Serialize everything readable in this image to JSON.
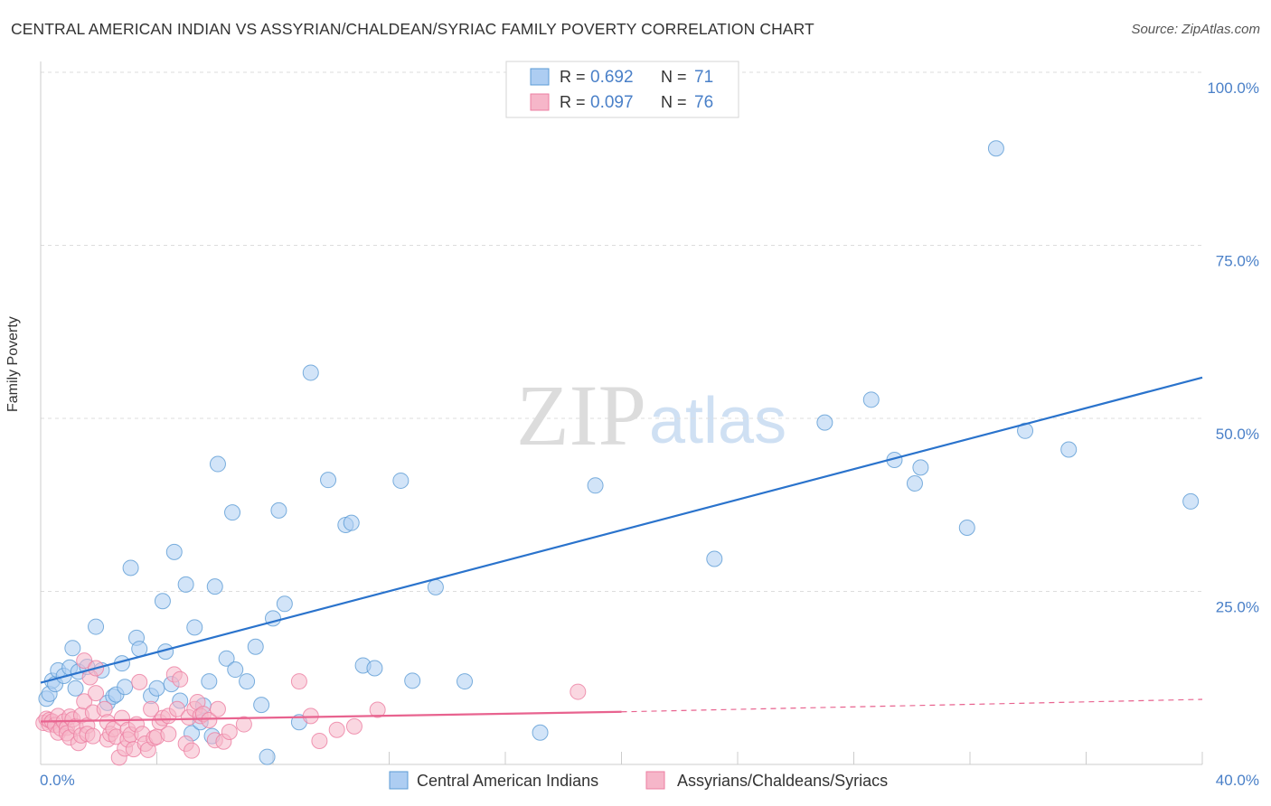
{
  "title": "CENTRAL AMERICAN INDIAN VS ASSYRIAN/CHALDEAN/SYRIAC FAMILY POVERTY CORRELATION CHART",
  "source": "Source: ZipAtlas.com",
  "watermark": {
    "zip": "ZIP",
    "atlas": "atlas"
  },
  "colors": {
    "blue": "#5b9bd5",
    "blue_fill": "#adcdf2",
    "blue_line": "#2a73cc",
    "pink": "#ec7ea1",
    "pink_fill": "#f6b6c9",
    "pink_line": "#e8638f",
    "tick_blue": "#4a80c8"
  },
  "chart_data": {
    "type": "scatter",
    "xlabel": "",
    "ylabel": "Family Poverty",
    "xlim": [
      0,
      40
    ],
    "ylim": [
      0,
      100
    ],
    "x_tick_labels": [
      {
        "value": 0,
        "label": "0.0%"
      },
      {
        "value": 40,
        "label": "40.0%"
      }
    ],
    "y_tick_labels": [
      {
        "value": 25,
        "label": "25.0%"
      },
      {
        "value": 50,
        "label": "50.0%"
      },
      {
        "value": 75,
        "label": "75.0%"
      },
      {
        "value": 100,
        "label": "100.0%"
      }
    ],
    "legend_stats": [
      {
        "r_label": "R =",
        "r": "0.692",
        "n_label": "N =",
        "n": "71"
      },
      {
        "r_label": "R =",
        "r": "0.097",
        "n_label": "N =",
        "n": "76"
      }
    ],
    "series": [
      {
        "name": "Central American Indians",
        "trend": {
          "x0": 0,
          "y0": 11.8,
          "x1": 40,
          "y1": 55.9
        },
        "points": [
          [
            0.2,
            9.5
          ],
          [
            0.3,
            10.2
          ],
          [
            0.4,
            12.1
          ],
          [
            0.5,
            11.6
          ],
          [
            0.6,
            13.6
          ],
          [
            0.8,
            12.8
          ],
          [
            1.0,
            14.0
          ],
          [
            1.1,
            16.8
          ],
          [
            1.2,
            11.0
          ],
          [
            1.3,
            13.4
          ],
          [
            1.6,
            14.1
          ],
          [
            1.9,
            19.9
          ],
          [
            2.1,
            13.6
          ],
          [
            2.3,
            8.9
          ],
          [
            2.5,
            9.8
          ],
          [
            2.6,
            10.1
          ],
          [
            2.8,
            14.6
          ],
          [
            2.9,
            11.2
          ],
          [
            3.1,
            28.4
          ],
          [
            3.3,
            18.3
          ],
          [
            3.4,
            16.7
          ],
          [
            3.8,
            9.9
          ],
          [
            4.0,
            11.0
          ],
          [
            4.2,
            23.6
          ],
          [
            4.3,
            16.3
          ],
          [
            4.5,
            11.6
          ],
          [
            4.6,
            30.7
          ],
          [
            4.8,
            9.2
          ],
          [
            5.0,
            26.0
          ],
          [
            5.2,
            4.5
          ],
          [
            5.3,
            19.8
          ],
          [
            5.5,
            6.1
          ],
          [
            5.6,
            8.5
          ],
          [
            5.8,
            12.0
          ],
          [
            5.9,
            4.1
          ],
          [
            6.0,
            25.7
          ],
          [
            6.1,
            43.4
          ],
          [
            6.4,
            15.3
          ],
          [
            6.6,
            36.4
          ],
          [
            6.7,
            13.7
          ],
          [
            7.1,
            12.0
          ],
          [
            7.4,
            17.0
          ],
          [
            7.6,
            8.6
          ],
          [
            7.8,
            1.1
          ],
          [
            8.0,
            21.1
          ],
          [
            8.2,
            36.7
          ],
          [
            8.4,
            23.2
          ],
          [
            8.9,
            6.1
          ],
          [
            9.3,
            56.6
          ],
          [
            9.9,
            41.1
          ],
          [
            10.5,
            34.6
          ],
          [
            10.7,
            34.9
          ],
          [
            11.1,
            14.3
          ],
          [
            11.5,
            13.9
          ],
          [
            12.4,
            41.0
          ],
          [
            12.8,
            12.1
          ],
          [
            13.6,
            25.6
          ],
          [
            14.6,
            12.0
          ],
          [
            17.2,
            4.6
          ],
          [
            19.1,
            40.3
          ],
          [
            23.2,
            29.7
          ],
          [
            27.0,
            49.4
          ],
          [
            28.6,
            52.7
          ],
          [
            29.4,
            44.0
          ],
          [
            30.1,
            40.6
          ],
          [
            30.3,
            42.9
          ],
          [
            31.9,
            34.2
          ],
          [
            32.9,
            89.0
          ],
          [
            33.9,
            48.2
          ],
          [
            35.4,
            45.5
          ],
          [
            39.6,
            38.0
          ]
        ]
      },
      {
        "name": "Assyrians/Chaldeans/Syriacs",
        "trend": {
          "x0": 0,
          "y0": 6.2,
          "x1": 20,
          "y1": 7.6,
          "dash_to_x": 40,
          "dash_to_y": 9.4
        },
        "points": [
          [
            0.1,
            6.0
          ],
          [
            0.2,
            6.6
          ],
          [
            0.3,
            5.8
          ],
          [
            0.3,
            6.4
          ],
          [
            0.4,
            6.2
          ],
          [
            0.5,
            5.7
          ],
          [
            0.6,
            7.0
          ],
          [
            0.6,
            4.6
          ],
          [
            0.7,
            5.2
          ],
          [
            0.8,
            6.2
          ],
          [
            0.9,
            5.3
          ],
          [
            0.9,
            4.5
          ],
          [
            1.0,
            6.9
          ],
          [
            1.0,
            3.9
          ],
          [
            1.1,
            6.5
          ],
          [
            1.2,
            5.5
          ],
          [
            1.3,
            3.1
          ],
          [
            1.4,
            4.2
          ],
          [
            1.4,
            7.1
          ],
          [
            1.5,
            15.0
          ],
          [
            1.5,
            9.1
          ],
          [
            1.6,
            5.6
          ],
          [
            1.6,
            4.4
          ],
          [
            1.7,
            12.6
          ],
          [
            1.8,
            7.5
          ],
          [
            1.8,
            4.1
          ],
          [
            1.9,
            10.3
          ],
          [
            1.9,
            13.9
          ],
          [
            2.2,
            8.0
          ],
          [
            2.3,
            6.1
          ],
          [
            2.3,
            3.6
          ],
          [
            2.4,
            4.4
          ],
          [
            2.5,
            5.1
          ],
          [
            2.6,
            4.0
          ],
          [
            2.7,
            1.0
          ],
          [
            2.8,
            6.7
          ],
          [
            2.9,
            2.3
          ],
          [
            3.0,
            5.0
          ],
          [
            3.0,
            3.6
          ],
          [
            3.1,
            4.3
          ],
          [
            3.2,
            2.2
          ],
          [
            3.3,
            5.8
          ],
          [
            3.4,
            11.9
          ],
          [
            3.5,
            4.4
          ],
          [
            3.6,
            3.0
          ],
          [
            3.7,
            2.1
          ],
          [
            3.8,
            8.0
          ],
          [
            3.9,
            3.8
          ],
          [
            4.0,
            4.0
          ],
          [
            4.1,
            6.1
          ],
          [
            4.2,
            6.7
          ],
          [
            4.4,
            7.0
          ],
          [
            4.4,
            4.4
          ],
          [
            4.6,
            13.0
          ],
          [
            4.7,
            8.0
          ],
          [
            4.8,
            12.3
          ],
          [
            5.0,
            3.0
          ],
          [
            5.1,
            6.8
          ],
          [
            5.2,
            2.0
          ],
          [
            5.3,
            8.0
          ],
          [
            5.4,
            9.0
          ],
          [
            5.5,
            7.0
          ],
          [
            5.6,
            7.3
          ],
          [
            5.8,
            6.4
          ],
          [
            6.0,
            3.5
          ],
          [
            6.1,
            8.0
          ],
          [
            6.3,
            3.3
          ],
          [
            6.5,
            4.7
          ],
          [
            7.0,
            5.8
          ],
          [
            8.9,
            12.0
          ],
          [
            9.3,
            7.0
          ],
          [
            9.6,
            3.4
          ],
          [
            10.2,
            5.0
          ],
          [
            10.8,
            5.5
          ],
          [
            11.6,
            7.9
          ],
          [
            18.5,
            10.5
          ]
        ]
      }
    ]
  }
}
